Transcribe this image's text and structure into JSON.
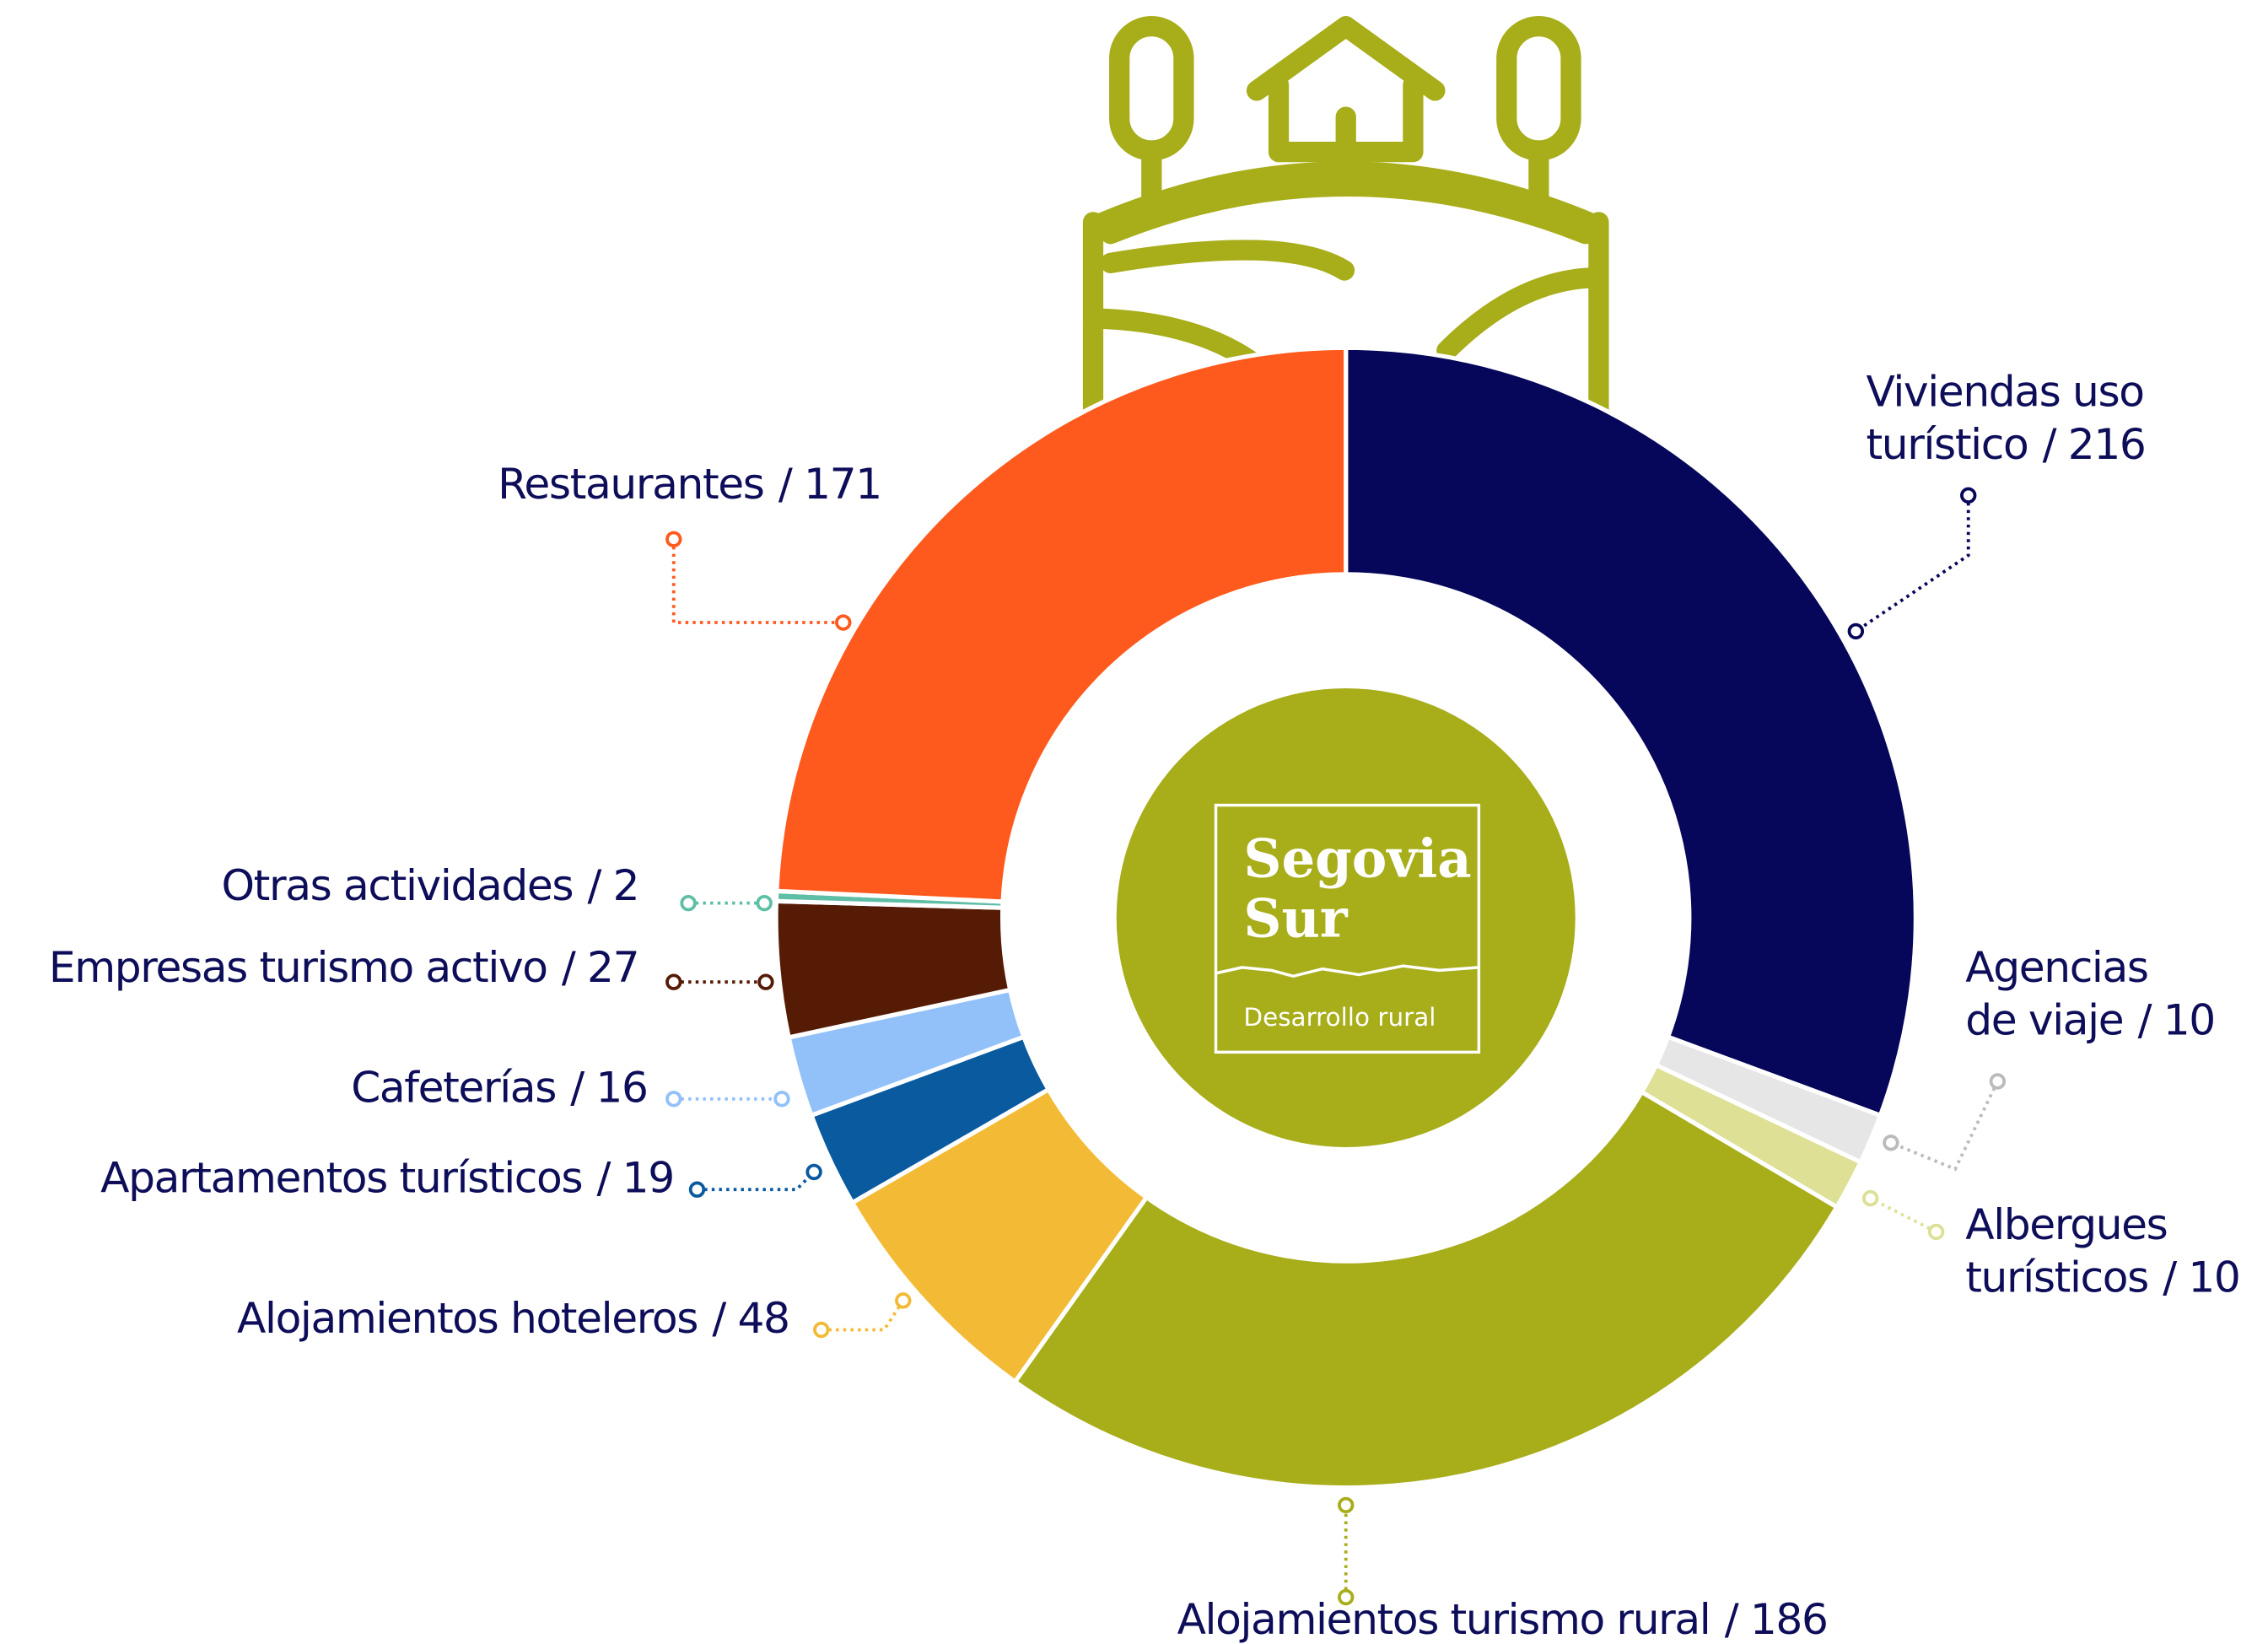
{
  "chart_data": {
    "type": "pie",
    "categories": [
      "Viviendas uso turístico",
      "Agencias de viaje",
      "Albergues turísticos",
      "Alojamientos turismo rural",
      "Alojamientos hoteleros",
      "Apartamentos turísticos",
      "Cafeterías",
      "Empresas turismo activo",
      "Otras actividades",
      "Restaurantes"
    ],
    "values": [
      216,
      10,
      10,
      186,
      48,
      19,
      16,
      27,
      2,
      171
    ],
    "value_labels": [
      "/ 216",
      "/ 10",
      "/ 10",
      "/ 186",
      "/ 48",
      "/ 19",
      "/ 16",
      "/ 27",
      "/ 2",
      "/ 171"
    ],
    "colors": [
      "#06065a",
      "#e6e6e6",
      "#dde095",
      "#a8ad1a",
      "#f3bb35",
      "#0a5aa0",
      "#92c1fa",
      "#561b05",
      "#5fbfa6",
      "#ff5a1e"
    ]
  },
  "logo": {
    "line1": "Segovia",
    "line2": "Sur",
    "tagline": "Desarrollo rural"
  }
}
